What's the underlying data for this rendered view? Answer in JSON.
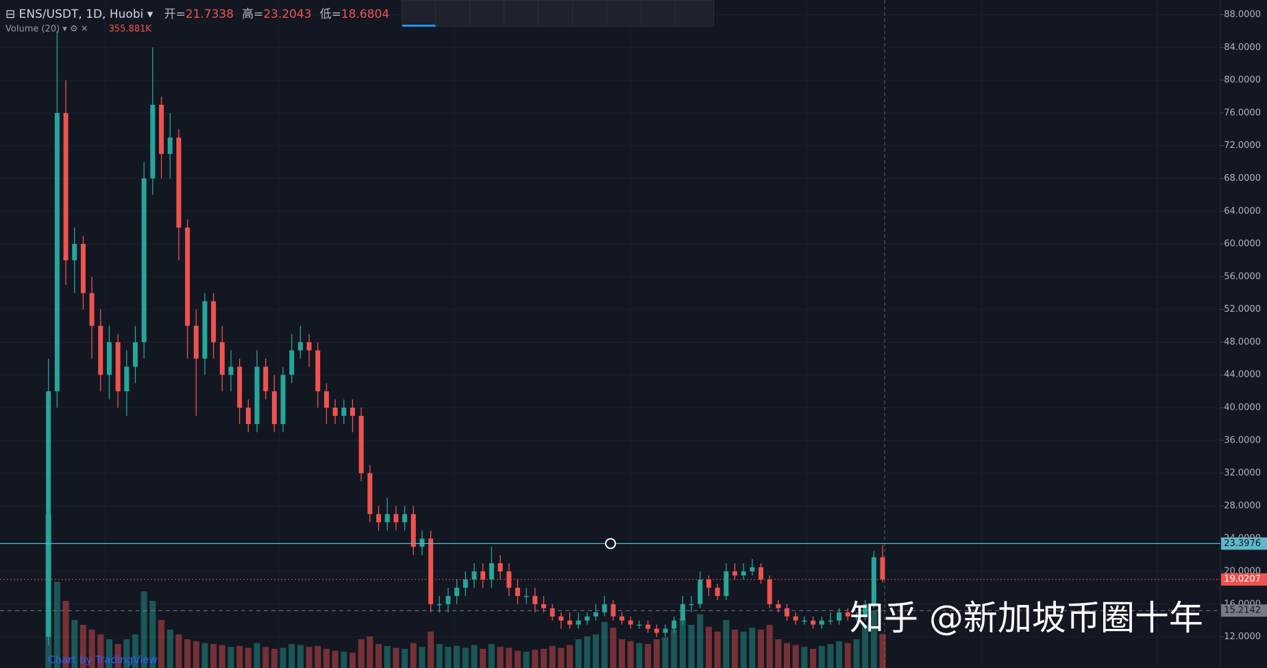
{
  "chart_data": {
    "type": "candlestick",
    "header": {
      "symbol": "ENS/USDT, 1D, Huobi",
      "open_label": "开=",
      "high_label": "高=",
      "low_label": "低="
    },
    "series": [
      {
        "name": "ENS/USDT",
        "open": [
          12,
          42,
          76,
          58,
          60,
          54,
          50,
          44,
          48,
          42,
          45,
          48,
          68,
          77,
          71,
          73,
          62,
          50,
          46,
          53,
          48,
          44,
          45,
          40,
          38,
          45,
          42,
          38,
          44,
          47,
          48,
          47,
          42,
          40,
          39,
          40,
          39,
          32,
          27,
          26,
          27,
          26,
          27,
          23,
          24,
          16,
          16,
          17,
          18,
          19,
          20,
          19,
          21,
          20,
          18,
          17,
          17,
          16,
          15.5,
          14.5,
          14,
          13.5,
          14,
          14.5,
          15,
          16,
          14.5,
          14,
          13.5,
          13.5,
          13,
          12.5,
          13,
          14,
          16,
          16,
          19,
          18,
          17,
          20,
          19.5,
          20,
          20.5,
          19,
          16,
          15.5,
          14.5,
          14,
          14,
          13.5,
          14,
          14,
          15,
          14.5,
          14.5,
          16,
          21.7338
        ],
        "high": [
          46,
          86,
          80,
          62,
          61,
          56,
          52,
          50,
          49,
          47,
          50,
          70,
          84,
          78,
          76,
          74,
          63,
          52,
          54,
          54,
          50,
          47,
          46,
          41,
          47,
          46,
          44,
          45,
          49,
          50,
          49,
          48,
          43,
          41,
          41,
          41,
          40,
          33,
          28,
          29,
          28,
          28,
          28,
          25,
          25,
          17,
          18,
          19,
          20,
          21,
          21,
          23,
          22,
          21,
          19,
          18,
          18,
          17,
          16,
          15,
          15,
          15,
          15,
          16,
          17,
          16.5,
          15,
          14.5,
          14,
          14,
          13.5,
          13.5,
          14.5,
          17,
          17,
          20,
          19.5,
          18.5,
          21,
          21,
          21,
          21.5,
          21,
          19.5,
          16.5,
          16,
          15,
          14.5,
          14.5,
          14.5,
          15,
          15.5,
          15.5,
          15,
          16.5,
          22.5,
          23.2043
        ],
        "low": [
          11,
          40,
          55,
          54,
          52,
          46,
          42,
          41,
          40,
          39,
          43,
          46,
          66,
          68,
          68,
          58,
          46,
          39,
          44,
          46,
          42,
          42,
          38,
          37,
          37,
          41,
          37,
          37,
          43,
          46,
          45,
          40,
          38,
          38,
          38,
          37,
          31,
          26,
          25,
          25,
          25,
          25,
          22,
          22,
          15,
          15,
          15,
          16,
          17,
          18,
          18,
          18,
          19,
          17,
          16,
          16,
          15,
          15,
          14,
          13,
          13,
          13,
          13.5,
          14,
          14.5,
          14,
          13.5,
          13,
          13,
          12.5,
          12,
          12,
          12.5,
          13.5,
          15,
          15.5,
          17,
          16.5,
          16.5,
          19,
          19,
          19.5,
          18.5,
          15.5,
          15,
          14,
          13.5,
          13.5,
          13,
          13,
          13.5,
          13.5,
          14,
          14,
          14,
          15.5,
          18.6804
        ],
        "close": [
          42,
          76,
          58,
          60,
          54,
          50,
          44,
          48,
          42,
          45,
          48,
          68,
          77,
          71,
          73,
          62,
          50,
          46,
          53,
          48,
          44,
          45,
          40,
          38,
          45,
          42,
          38,
          44,
          47,
          48,
          47,
          42,
          40,
          39,
          40,
          39,
          32,
          27,
          26,
          27,
          26,
          27,
          23,
          24,
          16,
          16,
          17,
          18,
          19,
          20,
          19,
          21,
          20,
          18,
          17,
          17,
          16,
          15.5,
          14.5,
          14,
          13.5,
          14,
          14.5,
          15,
          16,
          14.5,
          14,
          13.5,
          13.5,
          13,
          12.5,
          13,
          14,
          16,
          16,
          19,
          18,
          17,
          20,
          19.5,
          20,
          20.5,
          19,
          16,
          15.5,
          14.5,
          14,
          14,
          13.5,
          14,
          14,
          15,
          14.5,
          14.5,
          16,
          21.7338,
          19.0207
        ]
      }
    ],
    "volume": {
      "name": "Volume (20)",
      "current_label": "355.881K",
      "values": [
        1600000,
        900000,
        700000,
        500000,
        450000,
        400000,
        350000,
        300000,
        250000,
        300000,
        350000,
        800000,
        700000,
        500000,
        400000,
        350000,
        300000,
        280000,
        260000,
        250000,
        240000,
        220000,
        230000,
        210000,
        260000,
        220000,
        200000,
        210000,
        250000,
        240000,
        220000,
        230000,
        200000,
        180000,
        170000,
        160000,
        300000,
        330000,
        250000,
        230000,
        210000,
        200000,
        260000,
        220000,
        380000,
        250000,
        220000,
        230000,
        210000,
        240000,
        200000,
        250000,
        220000,
        210000,
        180000,
        170000,
        190000,
        200000,
        230000,
        210000,
        240000,
        300000,
        330000,
        350000,
        480000,
        420000,
        300000,
        280000,
        260000,
        250000,
        300000,
        320000,
        400000,
        520000,
        450000,
        560000,
        430000,
        380000,
        500000,
        400000,
        380000,
        420000,
        400000,
        450000,
        300000,
        260000,
        240000,
        220000,
        200000,
        230000,
        250000,
        280000,
        260000,
        300000,
        450000,
        600000,
        355881
      ]
    },
    "up_color": "#26a69a",
    "down_color": "#ef5350",
    "hlines": [
      {
        "value": 23.3976,
        "color": "#5fb8c9"
      },
      {
        "value": 15.2142,
        "color": "#787b86"
      }
    ],
    "ylim": [
      8.2,
      89.8
    ],
    "yticks": [
      {
        "value": 88,
        "label": "88.0000"
      },
      {
        "value": 84,
        "label": "84.0000"
      },
      {
        "value": 80,
        "label": "80.0000"
      },
      {
        "value": 76,
        "label": "76.0000"
      },
      {
        "value": 72,
        "label": "72.0000"
      },
      {
        "value": 68,
        "label": "68.0000"
      },
      {
        "value": 64,
        "label": "64.0000"
      },
      {
        "value": 60,
        "label": "60.0000"
      },
      {
        "value": 56,
        "label": "56.0000"
      },
      {
        "value": 52,
        "label": "52.0000"
      },
      {
        "value": 48,
        "label": "48.0000"
      },
      {
        "value": 44,
        "label": "44.0000"
      },
      {
        "value": 40,
        "label": "40.0000"
      },
      {
        "value": 36,
        "label": "36.0000"
      },
      {
        "value": 32,
        "label": "32.0000"
      },
      {
        "value": 28,
        "label": "28.0000"
      },
      {
        "value": 24,
        "label": "24.0000"
      },
      {
        "value": 20,
        "label": "20.0000"
      },
      {
        "value": 16,
        "label": "16.0000"
      },
      {
        "value": 12,
        "label": "12.0000"
      }
    ],
    "grid": true,
    "footer": "Chart by TradingView",
    "watermark": "知乎 @新加坡币圈十年"
  }
}
